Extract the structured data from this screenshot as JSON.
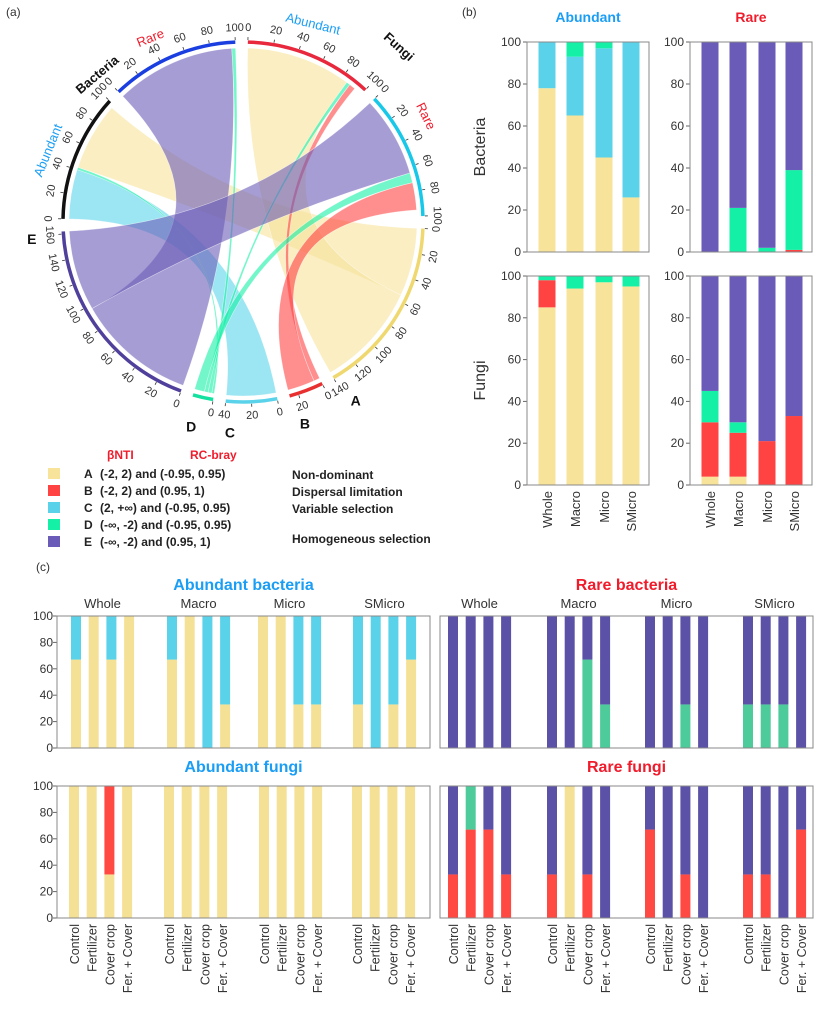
{
  "panel_labels": {
    "a": "(a)",
    "b": "(b)",
    "c": "(c)"
  },
  "colors": {
    "A": "#f7e39a",
    "B": "#ff4242",
    "C": "#5ad3ea",
    "D": "#14f0a6",
    "E": "#6a5bb8",
    "title_blue": "#1a9ef5",
    "title_red": "#f01c2c"
  },
  "colors_c": {
    "A": "#f5e196",
    "B": "#ff4a44",
    "C": "#5ad3ea",
    "D": "#4ecb9a",
    "E": "#5b52a8"
  },
  "legend": {
    "header_bnti": "βNTI",
    "header_rc": "RC-bray",
    "items": [
      {
        "letter": "A",
        "range": "(-2, 2) and (-0.95, 0.95)",
        "process": "Non-dominant"
      },
      {
        "letter": "B",
        "range": "(-2, 2) and (0.95, 1)",
        "process": "Dispersal limitation"
      },
      {
        "letter": "C",
        "range": "(2, +∞) and (-0.95, 0.95)",
        "process": "Variable selection"
      },
      {
        "letter": "D",
        "range": "(-∞, -2) and (-0.95, 0.95)",
        "process": ""
      },
      {
        "letter": "E",
        "range": "(-∞, -2) and (0.95, 1)",
        "process": ""
      }
    ],
    "shared_process": "Homogeneous selection"
  },
  "chart_data": [
    {
      "type": "chord",
      "group_labels": {
        "bacteria": "Bacteria",
        "fungi": "Fungi",
        "abundant": "Abundant",
        "rare": "Rare"
      },
      "sectors": [
        {
          "id": "BA",
          "label": "",
          "ring": "#111111"
        },
        {
          "id": "BR",
          "label": "",
          "ring": "#1a3ee0"
        },
        {
          "id": "FA",
          "label": "",
          "ring": "#e8283c"
        },
        {
          "id": "FR",
          "label": "",
          "ring": "#18c8e8"
        },
        {
          "id": "A",
          "label": "A",
          "ring": "#f0d870"
        },
        {
          "id": "B",
          "label": "B",
          "ring": "#e83030"
        },
        {
          "id": "C",
          "label": "C",
          "ring": "#5ad3ea"
        },
        {
          "id": "D",
          "label": "D",
          "ring": "#14e0a0"
        },
        {
          "id": "E",
          "label": "E",
          "ring": "#50409c"
        }
      ],
      "flows": [
        {
          "from": "BA",
          "to": "C",
          "value": 40
        },
        {
          "from": "BA",
          "to": "D",
          "value": 2
        },
        {
          "from": "BA",
          "to": "A",
          "value": 55
        },
        {
          "from": "BR",
          "to": "E",
          "value": 97
        },
        {
          "from": "BR",
          "to": "D",
          "value": 3
        },
        {
          "from": "FA",
          "to": "A",
          "value": 85
        },
        {
          "from": "FA",
          "to": "D",
          "value": 3
        },
        {
          "from": "FA",
          "to": "B",
          "value": 5
        },
        {
          "from": "FR",
          "to": "E",
          "value": 65
        },
        {
          "from": "FR",
          "to": "D",
          "value": 8
        },
        {
          "from": "FR",
          "to": "B",
          "value": 22
        }
      ],
      "tick_step": 20
    },
    {
      "type": "bar",
      "stacked": true,
      "column_titles": [
        "Abundant",
        "Rare"
      ],
      "row_labels": [
        "Bacteria",
        "Fungi"
      ],
      "categories": [
        "Whole",
        "Macro",
        "Micro",
        "SMicro"
      ],
      "ylim": [
        0,
        100
      ],
      "yticks": [
        "0",
        "20",
        "40",
        "60",
        "80",
        "100"
      ],
      "grid": [
        [
          [
            {
              "A": 78,
              "C": 22
            },
            {
              "A": 65,
              "C": 28,
              "D": 7
            },
            {
              "A": 45,
              "C": 52,
              "D": 3
            },
            {
              "A": 26,
              "C": 74
            }
          ],
          [
            {
              "E": 100
            },
            {
              "D": 21,
              "E": 79
            },
            {
              "D": 2,
              "E": 98
            },
            {
              "B": 1,
              "D": 38,
              "E": 61
            }
          ]
        ],
        [
          [
            {
              "A": 85,
              "B": 13,
              "D": 2
            },
            {
              "A": 94,
              "D": 6
            },
            {
              "A": 97,
              "D": 3
            },
            {
              "A": 95,
              "D": 5
            }
          ],
          [
            {
              "A": 4,
              "B": 26,
              "D": 15,
              "E": 55
            },
            {
              "A": 4,
              "B": 21,
              "D": 5,
              "E": 70
            },
            {
              "B": 21,
              "E": 79
            },
            {
              "B": 33,
              "E": 67
            }
          ]
        ]
      ]
    },
    {
      "type": "bar",
      "stacked": true,
      "groups": [
        "Whole",
        "Macro",
        "Micro",
        "SMicro"
      ],
      "treatments": [
        "Control",
        "Fertilizer",
        "Cover crop",
        "Fer. + Cover"
      ],
      "ylim": [
        0,
        100
      ],
      "yticks": [
        "0",
        "20",
        "40",
        "60",
        "80",
        "100"
      ],
      "charts": [
        {
          "title": "Abundant bacteria",
          "title_color": "#1a9ef5",
          "bars": [
            [
              {
                "A": 67,
                "C": 33
              },
              {
                "A": 100
              },
              {
                "A": 67,
                "C": 33
              },
              {
                "A": 100
              }
            ],
            [
              {
                "A": 67,
                "C": 33
              },
              {
                "A": 100
              },
              {
                "C": 100
              },
              {
                "A": 33,
                "C": 67
              }
            ],
            [
              {
                "A": 100
              },
              {
                "A": 100
              },
              {
                "A": 33,
                "C": 67
              },
              {
                "A": 33,
                "C": 67
              }
            ],
            [
              {
                "A": 33,
                "C": 67
              },
              {
                "C": 100
              },
              {
                "A": 33,
                "C": 67
              },
              {
                "A": 67,
                "C": 33
              }
            ]
          ]
        },
        {
          "title": "Rare bacteria",
          "title_color": "#f01c2c",
          "bars": [
            [
              {
                "E": 100
              },
              {
                "E": 100
              },
              {
                "E": 100
              },
              {
                "E": 100
              }
            ],
            [
              {
                "E": 100
              },
              {
                "E": 100
              },
              {
                "D": 67,
                "E": 33
              },
              {
                "D": 33,
                "E": 67
              }
            ],
            [
              {
                "E": 100
              },
              {
                "E": 100
              },
              {
                "D": 33,
                "E": 67
              },
              {
                "E": 100
              }
            ],
            [
              {
                "D": 33,
                "E": 67
              },
              {
                "D": 33,
                "E": 67
              },
              {
                "D": 33,
                "E": 67
              },
              {
                "E": 100
              }
            ]
          ]
        },
        {
          "title": "Abundant fungi",
          "title_color": "#1a9ef5",
          "bars": [
            [
              {
                "A": 100
              },
              {
                "A": 100
              },
              {
                "A": 33,
                "B": 67
              },
              {
                "A": 100
              }
            ],
            [
              {
                "A": 100
              },
              {
                "A": 100
              },
              {
                "A": 100
              },
              {
                "A": 100
              }
            ],
            [
              {
                "A": 100
              },
              {
                "A": 100
              },
              {
                "A": 100
              },
              {
                "A": 100
              }
            ],
            [
              {
                "A": 100
              },
              {
                "A": 100
              },
              {
                "A": 100
              },
              {
                "A": 100
              }
            ]
          ]
        },
        {
          "title": "Rare fungi",
          "title_color": "#f01c2c",
          "bars": [
            [
              {
                "B": 33,
                "E": 67
              },
              {
                "B": 67,
                "D": 33
              },
              {
                "B": 67,
                "E": 33
              },
              {
                "B": 33,
                "E": 67
              }
            ],
            [
              {
                "B": 33,
                "E": 67
              },
              {
                "A": 100
              },
              {
                "B": 33,
                "E": 67
              },
              {
                "E": 100
              }
            ],
            [
              {
                "B": 67,
                "E": 33
              },
              {
                "E": 100
              },
              {
                "B": 33,
                "E": 67
              },
              {
                "E": 100
              }
            ],
            [
              {
                "B": 33,
                "E": 67
              },
              {
                "B": 33,
                "E": 67
              },
              {
                "E": 100
              },
              {
                "B": 67,
                "E": 33
              }
            ]
          ]
        }
      ]
    }
  ]
}
